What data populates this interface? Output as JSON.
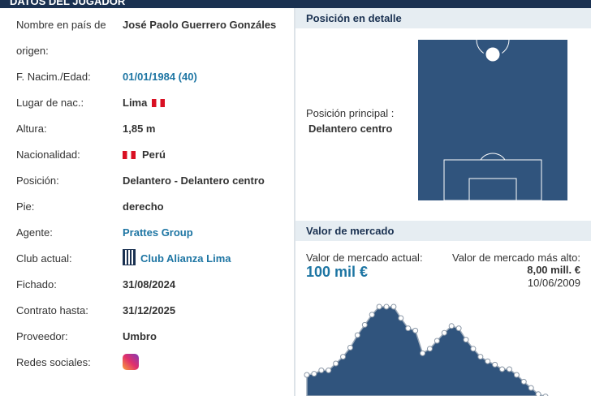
{
  "header": {
    "title": "DATOS DEL JUGADOR"
  },
  "player_info": {
    "rows": [
      {
        "label": "Nombre en país de origen:",
        "value": "José Paolo Guerrero Gonzáles"
      },
      {
        "label": "F. Nacim./Edad:",
        "value": "01/01/1984 (40)"
      },
      {
        "label": "Lugar de nac.:",
        "value": "Lima"
      },
      {
        "label": "Altura:",
        "value": "1,85 m"
      },
      {
        "label": "Nacionalidad:",
        "value": "Perú"
      },
      {
        "label": "Posición:",
        "value": "Delantero - Delantero centro"
      },
      {
        "label": "Pie:",
        "value": "derecho"
      },
      {
        "label": "Agente:",
        "value": "Prattes Group"
      },
      {
        "label": "Club actual:",
        "value": "Club Alianza Lima"
      },
      {
        "label": "Fichado:",
        "value": "31/08/2024"
      },
      {
        "label": "Contrato hasta:",
        "value": "31/12/2025"
      },
      {
        "label": "Proveedor:",
        "value": "Umbro"
      },
      {
        "label": "Redes sociales:"
      }
    ]
  },
  "position": {
    "title": "Posición en detalle",
    "main_label": "Posición principal :",
    "main_value": "Delantero centro"
  },
  "market_value": {
    "title": "Valor de mercado",
    "current_label": "Valor de mercado actual:",
    "current_value": "100 mil €",
    "highest_label": "Valor de mercado más alto:",
    "highest_value": "8,00 mill. €",
    "highest_date": "10/06/2009",
    "chart": {
      "type": "area",
      "values": [
        2000,
        2100,
        2400,
        2400,
        3000,
        3600,
        4400,
        5500,
        6400,
        7300,
        8000,
        8000,
        8000,
        7000,
        6100,
        5900,
        3900,
        4300,
        5000,
        5700,
        6300,
        6100,
        5100,
        4300,
        3600,
        3200,
        2900,
        2500,
        2500,
        2000,
        1400,
        850,
        300,
        100
      ]
    }
  }
}
